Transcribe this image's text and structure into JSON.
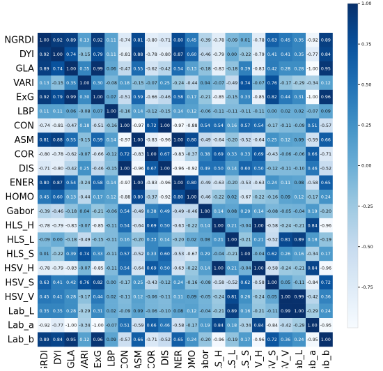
{
  "chart_data": {
    "type": "heatmap",
    "labels": [
      "NGRDI",
      "DYI",
      "GLA",
      "VARI",
      "ExG",
      "LBP",
      "CON",
      "ASM",
      "COR",
      "DIS",
      "ENER",
      "HOMO",
      "Gabor",
      "HLS_H",
      "HLS_L",
      "HLS_S",
      "HSV_H",
      "HSV_S",
      "HSV_V",
      "Lab_L",
      "Lab_a",
      "Lab_b"
    ],
    "matrix": [
      [
        1.0,
        0.92,
        0.89,
        0.13,
        0.92,
        0.11,
        -0.74,
        0.81,
        -0.8,
        -0.71,
        0.8,
        0.45,
        -0.39,
        -0.78,
        -0.09,
        0.01,
        -0.78,
        0.63,
        0.45,
        0.35,
        -0.92,
        0.89
      ],
      [
        0.92,
        1.0,
        0.74,
        -0.15,
        0.79,
        0.11,
        -0.81,
        0.88,
        -0.78,
        -0.8,
        0.87,
        0.6,
        -0.46,
        -0.79,
        0.0,
        -0.22,
        -0.79,
        0.41,
        0.41,
        0.35,
        -0.77,
        0.84
      ],
      [
        0.89,
        0.74,
        1.0,
        0.35,
        0.99,
        0.06,
        -0.47,
        0.55,
        -0.62,
        -0.42,
        0.54,
        0.13,
        -0.18,
        -0.83,
        -0.18,
        0.39,
        -0.83,
        0.42,
        0.28,
        0.28,
        -1.0,
        0.95
      ],
      [
        0.13,
        -0.15,
        0.35,
        1.0,
        0.3,
        -0.08,
        0.18,
        -0.15,
        -0.07,
        0.25,
        -0.24,
        -0.44,
        0.04,
        -0.07,
        -0.49,
        0.74,
        -0.07,
        0.76,
        -0.17,
        -0.29,
        -0.34,
        0.12
      ],
      [
        0.92,
        0.79,
        0.99,
        0.3,
        1.0,
        0.07,
        -0.51,
        0.59,
        -0.66,
        -0.46,
        0.58,
        0.17,
        -0.21,
        -0.85,
        -0.15,
        0.33,
        -0.85,
        0.82,
        0.44,
        0.31,
        -1.0,
        0.96
      ],
      [
        0.11,
        0.11,
        0.06,
        -0.08,
        0.07,
        1.0,
        -0.16,
        0.14,
        -0.12,
        -0.15,
        0.14,
        0.12,
        -0.06,
        -0.11,
        -0.11,
        -0.11,
        -0.11,
        0.0,
        0.02,
        0.02,
        -0.07,
        0.09
      ],
      [
        -0.74,
        -0.81,
        -0.47,
        0.18,
        -0.51,
        -0.16,
        1.0,
        -0.97,
        0.72,
        1.0,
        -0.97,
        -0.88,
        0.54,
        0.54,
        0.16,
        0.57,
        0.54,
        -0.17,
        -0.11,
        -0.09,
        0.51,
        -0.57
      ],
      [
        0.81,
        0.88,
        0.55,
        -0.15,
        0.59,
        0.14,
        -0.97,
        1.0,
        -0.83,
        -0.96,
        1.0,
        0.8,
        -0.49,
        -0.64,
        -0.2,
        -0.52,
        -0.64,
        0.25,
        0.12,
        0.09,
        -0.59,
        0.66
      ],
      [
        -0.8,
        -0.78,
        -0.62,
        -0.07,
        -0.66,
        -0.12,
        0.72,
        -0.83,
        1.0,
        0.67,
        -0.83,
        -0.37,
        0.38,
        0.69,
        0.33,
        0.33,
        0.69,
        -0.43,
        -0.06,
        -0.06,
        0.66,
        -0.71
      ],
      [
        -0.71,
        -0.8,
        -0.42,
        0.25,
        -0.46,
        -0.15,
        1.0,
        -0.96,
        0.67,
        1.0,
        -0.96,
        -0.92,
        0.49,
        0.5,
        0.14,
        0.6,
        0.5,
        -0.12,
        -0.11,
        -0.1,
        0.46,
        -0.52
      ],
      [
        0.8,
        0.87,
        0.54,
        -0.24,
        0.58,
        0.14,
        -0.97,
        1.0,
        -0.83,
        -0.96,
        1.0,
        0.8,
        -0.49,
        -0.63,
        -0.2,
        -0.53,
        -0.63,
        0.24,
        0.11,
        0.08,
        -0.58,
        0.65
      ],
      [
        0.45,
        0.6,
        0.13,
        -0.44,
        0.17,
        0.12,
        -0.88,
        0.8,
        -0.37,
        -0.92,
        0.8,
        1.0,
        -0.46,
        -0.22,
        0.02,
        -0.67,
        -0.22,
        -0.16,
        0.09,
        0.12,
        -0.17,
        0.24
      ],
      [
        -0.39,
        -0.46,
        -0.18,
        0.04,
        -0.21,
        -0.06,
        0.54,
        -0.49,
        0.38,
        0.49,
        -0.49,
        -0.46,
        1.0,
        0.14,
        0.08,
        0.29,
        0.14,
        -0.08,
        -0.05,
        -0.04,
        0.19,
        -0.2
      ],
      [
        -0.78,
        -0.79,
        -0.83,
        -0.07,
        -0.85,
        -0.11,
        0.54,
        -0.64,
        0.69,
        0.5,
        -0.63,
        -0.22,
        0.14,
        1.0,
        0.21,
        -0.04,
        1.0,
        -0.58,
        -0.24,
        -0.21,
        0.84,
        -0.96
      ],
      [
        -0.09,
        0.0,
        -0.18,
        -0.49,
        -0.15,
        -0.11,
        0.16,
        -0.2,
        0.33,
        0.14,
        -0.2,
        0.02,
        0.08,
        0.21,
        1.0,
        -0.21,
        0.21,
        -0.52,
        0.81,
        0.89,
        0.18,
        -0.19
      ],
      [
        0.01,
        -0.22,
        0.39,
        0.74,
        0.33,
        -0.11,
        0.57,
        -0.52,
        0.33,
        0.6,
        -0.53,
        -0.67,
        0.29,
        -0.04,
        -0.21,
        1.0,
        -0.04,
        0.62,
        0.26,
        0.16,
        -0.34,
        0.17
      ],
      [
        -0.78,
        -0.79,
        -0.83,
        -0.07,
        -0.85,
        -0.11,
        0.54,
        -0.64,
        0.69,
        0.5,
        -0.63,
        -0.22,
        0.14,
        1.0,
        0.21,
        -0.04,
        1.0,
        -0.58,
        -0.24,
        -0.21,
        0.84,
        -0.96
      ],
      [
        0.63,
        0.41,
        0.42,
        0.76,
        0.82,
        0.0,
        -0.17,
        0.25,
        -0.43,
        -0.12,
        0.24,
        -0.16,
        -0.08,
        -0.58,
        -0.52,
        0.62,
        -0.58,
        1.0,
        0.05,
        -0.11,
        -0.84,
        0.72
      ],
      [
        0.45,
        0.41,
        0.28,
        -0.17,
        0.44,
        0.02,
        -0.11,
        0.12,
        -0.06,
        -0.11,
        0.11,
        0.09,
        -0.05,
        -0.24,
        0.81,
        0.26,
        -0.24,
        0.05,
        1.0,
        0.99,
        -0.42,
        0.36
      ],
      [
        0.35,
        0.35,
        0.28,
        -0.29,
        0.31,
        0.02,
        -0.09,
        0.09,
        -0.06,
        -0.1,
        0.08,
        0.12,
        -0.04,
        -0.21,
        0.89,
        0.16,
        -0.21,
        -0.11,
        0.99,
        1.0,
        -0.29,
        0.24
      ],
      [
        -0.92,
        -0.77,
        -1.0,
        -0.34,
        -1.0,
        -0.07,
        0.51,
        -0.59,
        0.66,
        0.46,
        -0.58,
        -0.17,
        0.19,
        0.84,
        0.18,
        -0.34,
        0.84,
        -0.84,
        -0.42,
        -0.29,
        1.0,
        -0.95
      ],
      [
        0.89,
        0.84,
        0.95,
        0.12,
        0.96,
        0.09,
        -0.57,
        0.66,
        -0.71,
        -0.52,
        0.65,
        0.24,
        -0.2,
        -0.96,
        -0.19,
        0.17,
        -0.96,
        0.72,
        0.36,
        0.24,
        -0.95,
        1.0
      ]
    ],
    "value_range": [
      -1.0,
      1.0
    ],
    "colorbar_ticks": [
      "1.00",
      "0.75",
      "0.50",
      "0.25",
      "0.00",
      "-0.25",
      "-0.50",
      "-0.75"
    ],
    "colormap": "Blues",
    "title": "",
    "xlabel": "",
    "ylabel": ""
  }
}
